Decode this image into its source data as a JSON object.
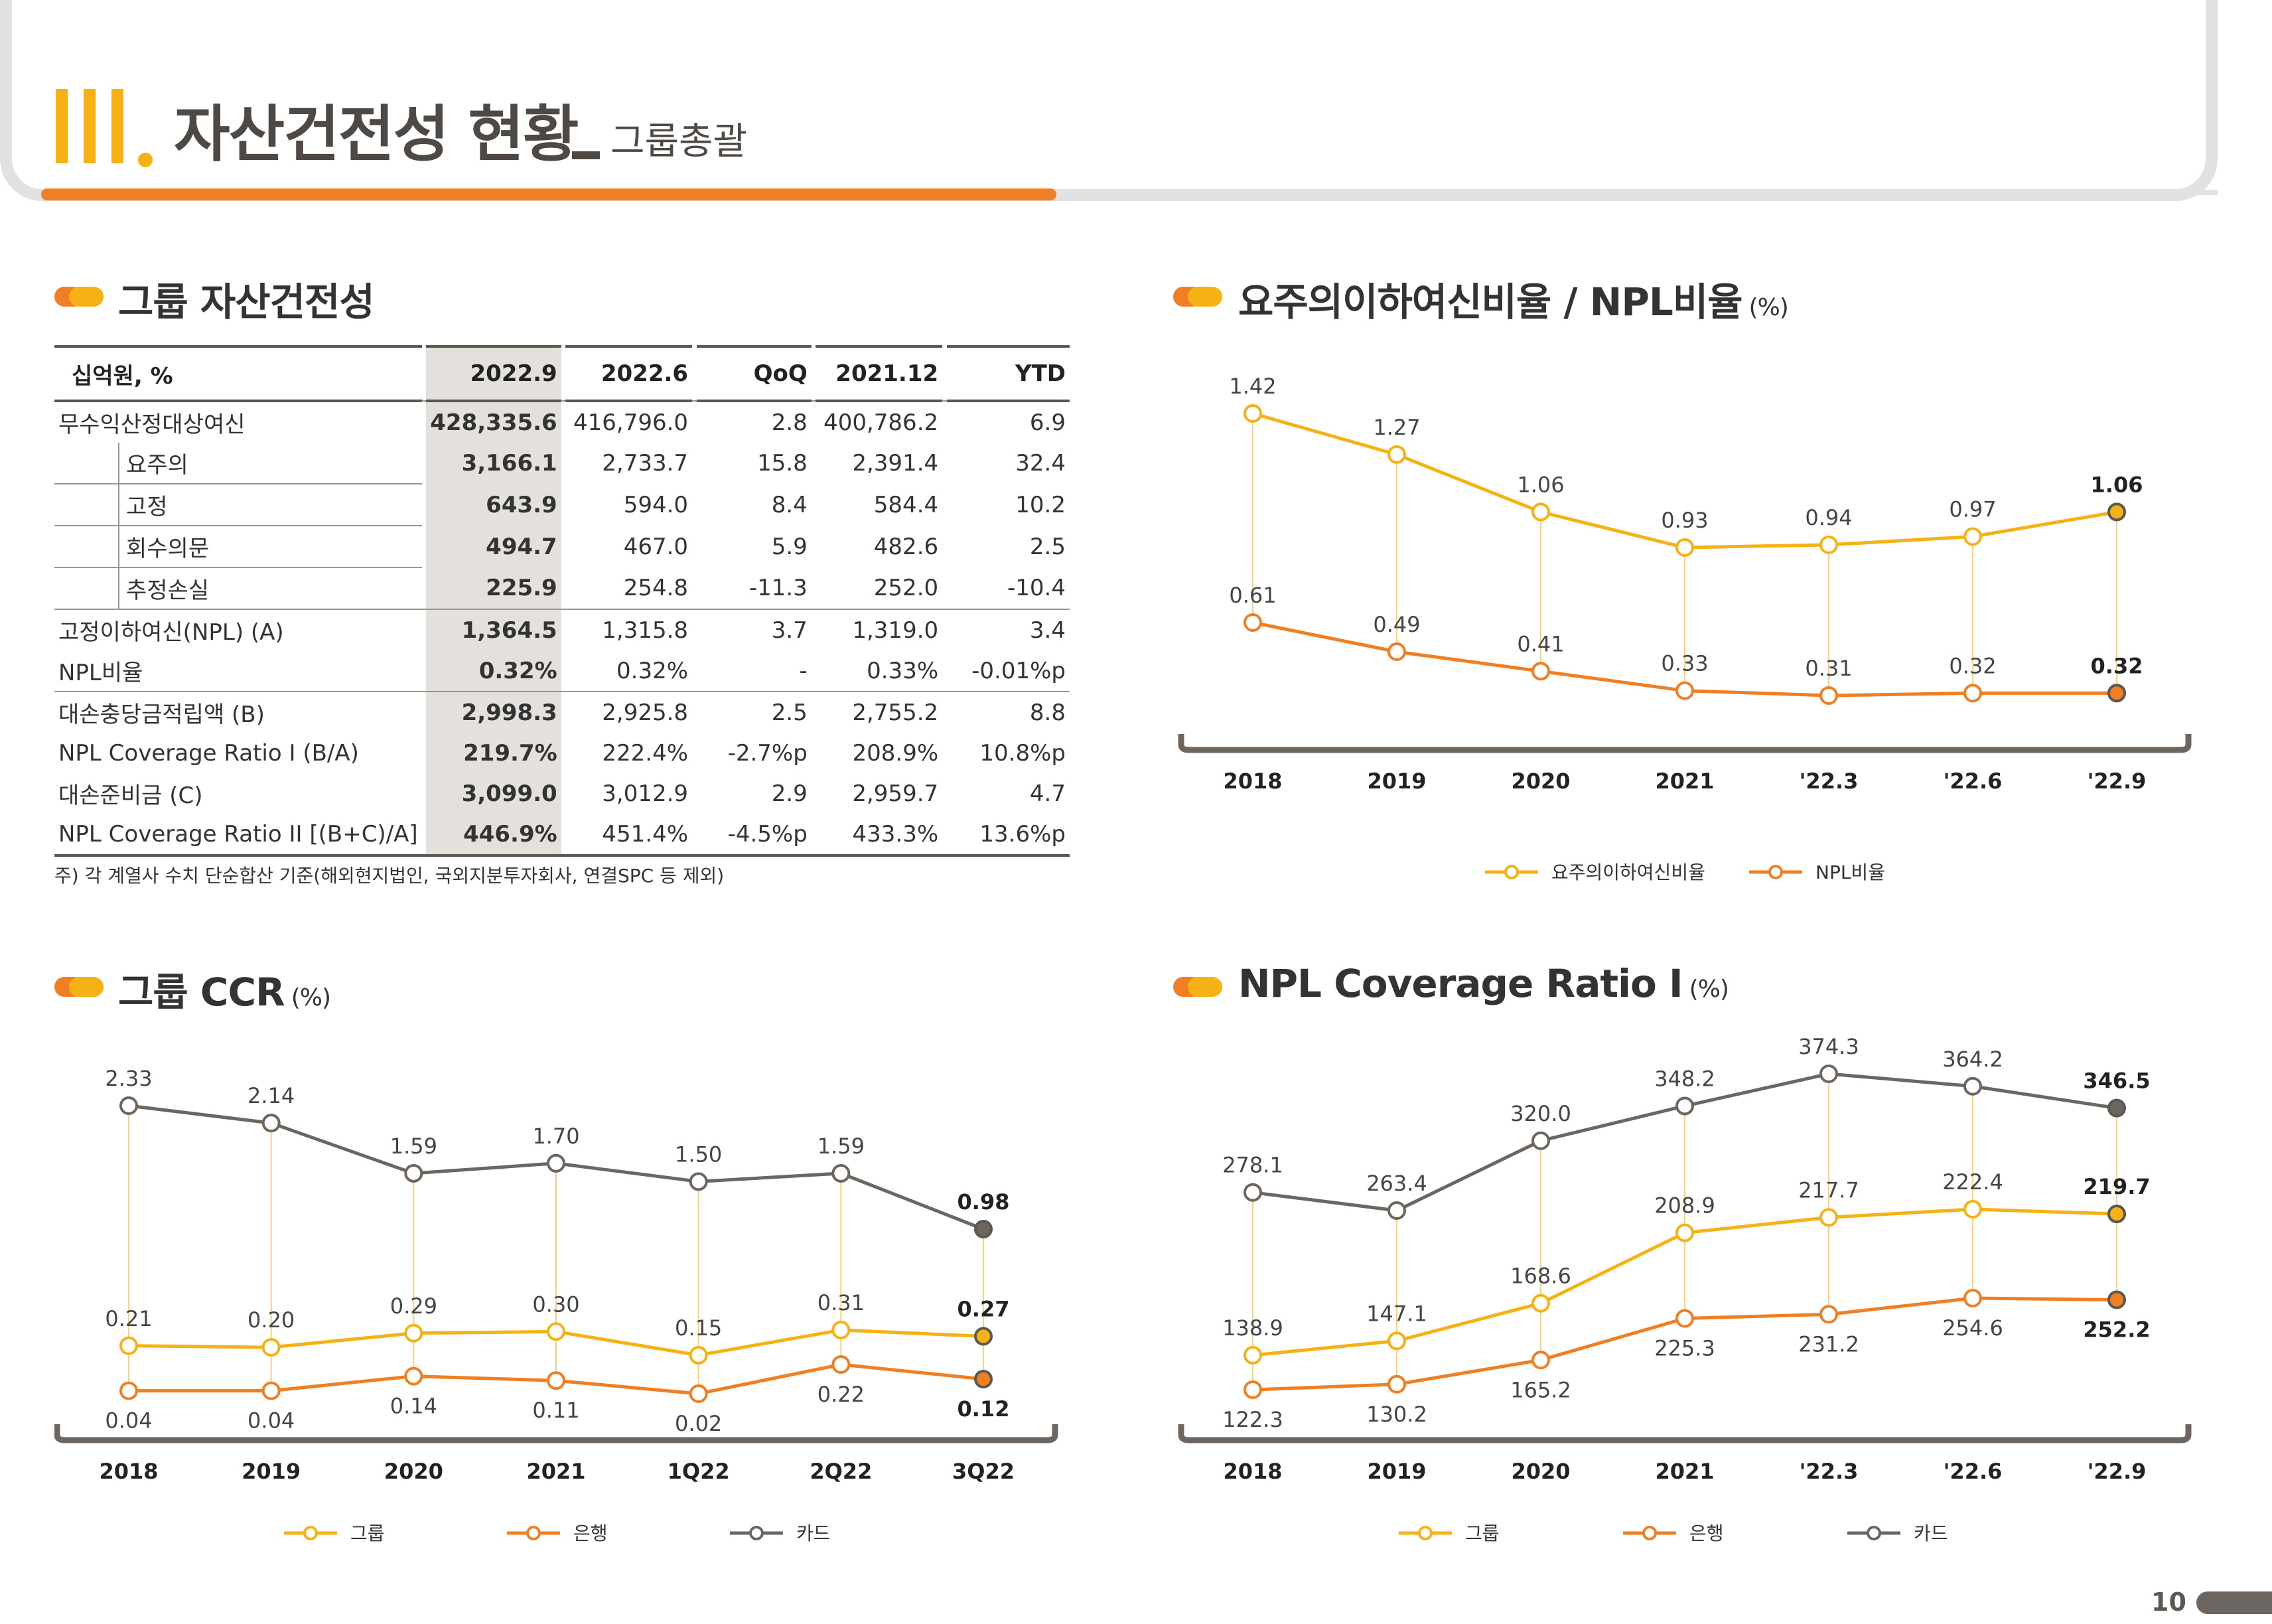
{
  "header": {
    "section_numeral": "III.",
    "title": "자산건전성 현황",
    "subtitle": "그룹총괄"
  },
  "table_section": {
    "title": "그룹 자산건전성",
    "columns": [
      "십억원, %",
      "2022.9",
      "2022.6",
      "QoQ",
      "2021.12",
      "YTD"
    ],
    "rows": [
      {
        "label": "무수익산정대상여신",
        "indent": false,
        "values": [
          "428,335.6",
          "416,796.0",
          "2.8",
          "400,786.2",
          "6.9"
        ]
      },
      {
        "label": "요주의",
        "indent": true,
        "values": [
          "3,166.1",
          "2,733.7",
          "15.8",
          "2,391.4",
          "32.4"
        ]
      },
      {
        "label": "고정",
        "indent": true,
        "values": [
          "643.9",
          "594.0",
          "8.4",
          "584.4",
          "10.2"
        ]
      },
      {
        "label": "회수의문",
        "indent": true,
        "values": [
          "494.7",
          "467.0",
          "5.9",
          "482.6",
          "2.5"
        ]
      },
      {
        "label": "추정손실",
        "indent": true,
        "values": [
          "225.9",
          "254.8",
          "-11.3",
          "252.0",
          "-10.4"
        ]
      },
      {
        "label": "고정이하여신(NPL) (A)",
        "indent": false,
        "values": [
          "1,364.5",
          "1,315.8",
          "3.7",
          "1,319.0",
          "3.4"
        ]
      },
      {
        "label": "NPL비율",
        "indent": false,
        "values": [
          "0.32%",
          "0.32%",
          "-",
          "0.33%",
          "-0.01%p"
        ]
      },
      {
        "label": "대손충당금적립액 (B)",
        "indent": false,
        "values": [
          "2,998.3",
          "2,925.8",
          "2.5",
          "2,755.2",
          "8.8"
        ]
      },
      {
        "label": "NPL Coverage Ratio I (B/A)",
        "indent": false,
        "values": [
          "219.7%",
          "222.4%",
          "-2.7%p",
          "208.9%",
          "10.8%p"
        ]
      },
      {
        "label": "대손준비금 (C)",
        "indent": false,
        "values": [
          "3,099.0",
          "3,012.9",
          "2.9",
          "2,959.7",
          "4.7"
        ]
      },
      {
        "label": "NPL Coverage  Ratio II [(B+C)/A]",
        "indent": false,
        "values": [
          "446.9%",
          "451.4%",
          "-4.5%p",
          "433.3%",
          "13.6%p"
        ]
      }
    ],
    "footnote": "주) 각 계열사 수치 단순합산 기준(해외현지법인, 국외지분투자회사, 연결SPC 등 제외)"
  },
  "chart_titles": {
    "npl": {
      "title": "요주의이하여신비율 / NPL비율",
      "unit": "(%)"
    },
    "ccr": {
      "title": "그룹 CCR",
      "unit": "(%)"
    },
    "cov": {
      "title": "NPL Coverage Ratio I",
      "unit": "(%)"
    }
  },
  "chart_data": [
    {
      "id": "npl",
      "type": "line",
      "categories": [
        "2018",
        "2019",
        "2020",
        "2021",
        "'22.3",
        "'22.6",
        "'22.9"
      ],
      "series": [
        {
          "name": "요주의이하여신비율",
          "values": [
            1.42,
            1.27,
            1.06,
            0.93,
            0.94,
            0.97,
            1.06
          ],
          "labels": [
            "1.42",
            "1.27",
            "1.06",
            "0.93",
            "0.94",
            "0.97",
            "1.06"
          ],
          "color": "#f6b115",
          "label_side": "above"
        },
        {
          "name": "NPL비율",
          "values": [
            0.61,
            0.49,
            0.41,
            0.33,
            0.31,
            0.32,
            0.32
          ],
          "labels": [
            "0.61",
            "0.49",
            "0.41",
            "0.33",
            "0.31",
            "0.32",
            "0.32"
          ],
          "color": "#ef7f22",
          "label_side": "above"
        }
      ],
      "ylim": [
        0.2,
        1.6
      ],
      "legend": "bottom"
    },
    {
      "id": "ccr",
      "type": "line",
      "categories": [
        "2018",
        "2019",
        "2020",
        "2021",
        "1Q22",
        "2Q22",
        "3Q22"
      ],
      "series": [
        {
          "name": "그룹",
          "values": [
            0.21,
            0.2,
            0.29,
            0.3,
            0.15,
            0.31,
            0.27
          ],
          "labels": [
            "0.21",
            "0.20",
            "0.29",
            "0.30",
            "0.15",
            "0.31",
            "0.27"
          ],
          "color": "#f6b115",
          "label_side": "above"
        },
        {
          "name": "은행",
          "values": [
            0.04,
            0.04,
            0.14,
            0.11,
            0.02,
            0.22,
            0.12
          ],
          "labels": [
            "0.04",
            "0.04",
            "0.14",
            "0.11",
            "0.02",
            "0.22",
            "0.12"
          ],
          "color": "#ef7f22",
          "label_side": "below"
        },
        {
          "name": "카드",
          "values": [
            2.33,
            2.14,
            1.59,
            1.7,
            1.5,
            1.59,
            0.98
          ],
          "labels": [
            "2.33",
            "2.14",
            "1.59",
            "1.70",
            "1.50",
            "1.59",
            "0.98"
          ],
          "color": "#6d6560",
          "label_side": "above"
        }
      ],
      "legend": "bottom"
    },
    {
      "id": "cov",
      "type": "line",
      "categories": [
        "2018",
        "2019",
        "2020",
        "2021",
        "'22.3",
        "'22.6",
        "'22.9"
      ],
      "series": [
        {
          "name": "그룹",
          "values": [
            138.9,
            147.1,
            168.6,
            208.9,
            217.7,
            222.4,
            219.7
          ],
          "labels": [
            "138.9",
            "147.1",
            "168.6",
            "208.9",
            "217.7",
            "222.4",
            "219.7"
          ],
          "color": "#f6b115",
          "label_side": "above"
        },
        {
          "name": "은행",
          "values": [
            122.3,
            130.2,
            165.2,
            225.3,
            231.2,
            254.6,
            252.2
          ],
          "labels": [
            "122.3",
            "130.2",
            "165.2",
            "225.3",
            "231.2",
            "254.6",
            "252.2"
          ],
          "color": "#ef7f22",
          "label_side": "below"
        },
        {
          "name": "카드",
          "values": [
            278.1,
            263.4,
            320.0,
            348.2,
            374.3,
            364.2,
            346.5
          ],
          "labels": [
            "278.1",
            "263.4",
            "320.0",
            "348.2",
            "374.3",
            "364.2",
            "346.5"
          ],
          "color": "#6d6560",
          "label_side": "above"
        }
      ],
      "legend": "bottom"
    }
  ],
  "page_number": "10"
}
